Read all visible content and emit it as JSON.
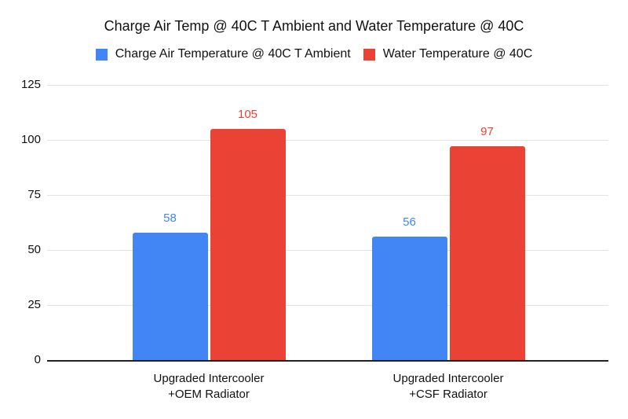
{
  "chart_data": {
    "type": "bar",
    "title": "Charge Air Temp @ 40C T Ambient and Water Temperature @ 40C",
    "categories": [
      "Upgraded Intercooler\n+OEM Radiator",
      "Upgraded Intercooler\n+CSF Radiator"
    ],
    "series": [
      {
        "name": "Charge Air Temperature @ 40C T Ambient",
        "color": "#4285F4",
        "values": [
          58,
          56
        ]
      },
      {
        "name": "Water Temperature @ 40C",
        "color": "#EA4335",
        "values": [
          105,
          97
        ]
      }
    ],
    "xlabel": "",
    "ylabel": "",
    "ylim": [
      0,
      125
    ],
    "yticks": [
      0,
      25,
      50,
      75,
      100,
      125
    ],
    "grid": true,
    "legend_position": "top",
    "data_labels_shown": true
  },
  "colors": {
    "background": "#ffffff",
    "grid_line": "#e3e3e3",
    "axis_line": "#212121",
    "text": "#111111"
  }
}
